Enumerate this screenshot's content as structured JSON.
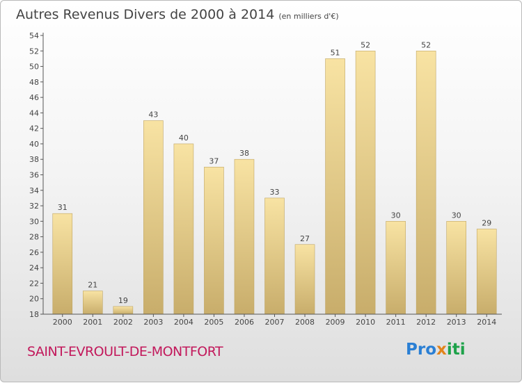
{
  "header": {
    "title": "Autres Revenus Divers de 2000 à 2014",
    "unit": "(en milliers d'€)"
  },
  "footer": {
    "commune": "SAINT-EVROULT-DE-MONTFORT",
    "logo": "Proxiti",
    "logo_parts": [
      "Pro",
      "x",
      "iti"
    ]
  },
  "colors": {
    "bar_light": "#f8e3a3",
    "bar_dark": "#c8ad6b",
    "axis": "#555555",
    "commune": "#c2185b"
  },
  "chart_data": {
    "type": "bar",
    "categories": [
      "2000",
      "2001",
      "2002",
      "2003",
      "2004",
      "2005",
      "2006",
      "2007",
      "2008",
      "2009",
      "2010",
      "2011",
      "2012",
      "2013",
      "2014"
    ],
    "values": [
      31,
      21,
      19,
      43,
      40,
      37,
      38,
      33,
      27,
      51,
      52,
      30,
      52,
      30,
      29
    ],
    "ylim": [
      18,
      54
    ],
    "yticks": [
      18,
      20,
      22,
      24,
      26,
      28,
      30,
      32,
      34,
      36,
      38,
      40,
      42,
      44,
      46,
      48,
      50,
      52,
      54
    ],
    "grid": false
  }
}
